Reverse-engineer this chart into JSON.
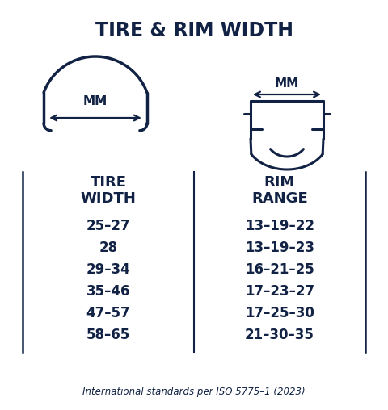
{
  "title": "TIRE & RIM WIDTH",
  "bg_color": "#ffffff",
  "main_color": "#112244",
  "header_col1": "TIRE\nWIDTH",
  "header_col2": "RIM\nRANGE",
  "tire_widths": [
    "25–27",
    "28",
    "29–34",
    "35–46",
    "47–57",
    "58–65"
  ],
  "rim_ranges": [
    "13–19–22",
    "13–19–23",
    "16–21–25",
    "17–23–27",
    "17–25–30",
    "21–30–35"
  ],
  "footnote": "International standards per ISO 5775–1 (2023)",
  "mm_label": "MM",
  "figw": 4.8,
  "figh": 5.08,
  "dpi": 100
}
